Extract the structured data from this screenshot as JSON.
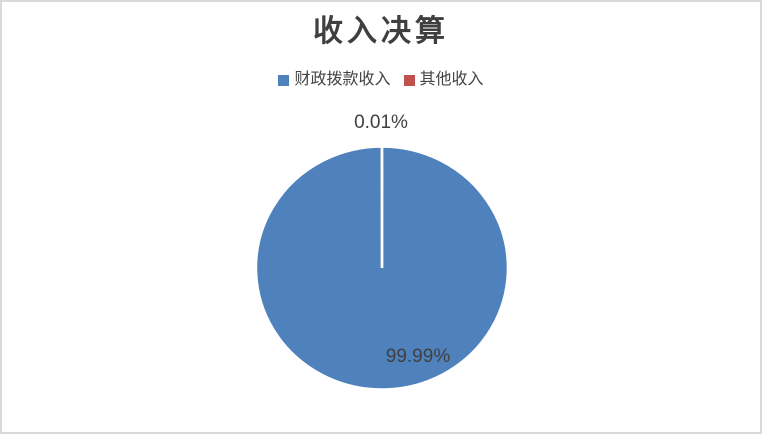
{
  "chart": {
    "title": "收入决算"
  },
  "chart_data": {
    "type": "pie",
    "title": "收入决算",
    "categories": [
      "财政拨款收入",
      "其他收入"
    ],
    "values": [
      99.99,
      0.01
    ],
    "unit": "%",
    "labels": [
      "99.99%",
      "0.01%"
    ],
    "colors": [
      "#4F81BD",
      "#C0504D"
    ],
    "label_color": "#404040",
    "title_color": "#3f3f3f",
    "legend_position": "top",
    "start_angle_deg": -90,
    "direction": "clockwise",
    "grid": false
  }
}
